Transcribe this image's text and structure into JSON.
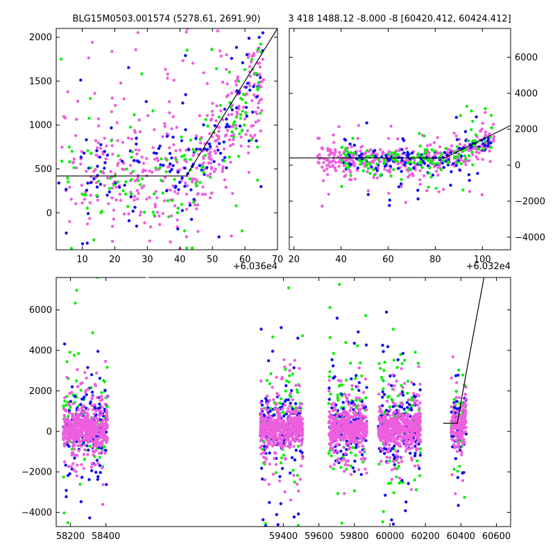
{
  "colors": {
    "magenta": "#ee5ede",
    "blue": "#1010ee",
    "green": "#10ee10",
    "line": "#000000"
  },
  "chart_data": [
    {
      "type": "scatter",
      "title": "BLG15M0503.001574 (5278.61, 2691.90)",
      "offset_label": "+6.036e4",
      "xlim": [
        2,
        70
      ],
      "ylim": [
        -420,
        2100
      ],
      "xticks": [
        10,
        20,
        30,
        40,
        50,
        60,
        70
      ],
      "yticks": [
        0,
        500,
        1000,
        1500,
        2000
      ],
      "model": {
        "x": [
          2,
          42,
          70
        ],
        "y": [
          420,
          420,
          2100
        ]
      },
      "series": [
        {
          "color": "magenta",
          "count": 430,
          "x_range": [
            2,
            66
          ],
          "trend": "rising"
        },
        {
          "color": "blue",
          "count": 150,
          "x_range": [
            2,
            66
          ],
          "trend": "rising"
        },
        {
          "color": "green",
          "count": 150,
          "x_range": [
            2,
            66
          ],
          "trend": "rising"
        }
      ]
    },
    {
      "type": "scatter",
      "title": "3 418 1488.12 -8.000 -8 [60420.412, 60424.412]",
      "offset_label": "+6.032e4",
      "xlim": [
        18,
        112
      ],
      "ylim": [
        -4700,
        7600
      ],
      "xticks": [
        20,
        40,
        60,
        80,
        100
      ],
      "yticks": [
        -4000,
        -2000,
        0,
        2000,
        4000,
        6000
      ],
      "model": {
        "x": [
          18,
          84,
          112
        ],
        "y": [
          400,
          400,
          2200
        ]
      },
      "series": [
        {
          "color": "magenta",
          "count": 380,
          "x_range": [
            30,
            105
          ]
        },
        {
          "color": "blue",
          "count": 140,
          "x_range": [
            40,
            105
          ]
        },
        {
          "color": "green",
          "count": 140,
          "x_range": [
            40,
            105
          ]
        }
      ]
    },
    {
      "type": "scatter",
      "xlim": [
        58120,
        60680
      ],
      "ylim": [
        -4700,
        7600
      ],
      "xticks": [
        58200,
        58400,
        59400,
        59600,
        59800,
        60000,
        60200,
        60400,
        60600
      ],
      "yticks": [
        -4000,
        -2000,
        0,
        2000,
        4000,
        6000
      ],
      "seasons": [
        [
          58160,
          58410
        ],
        [
          59270,
          59510
        ],
        [
          59655,
          59870
        ],
        [
          59935,
          60175
        ],
        [
          60345,
          60430
        ]
      ],
      "model": {
        "x": [
          60300,
          60380,
          60424,
          60530
        ],
        "y": [
          400,
          400,
          2600,
          7600
        ]
      },
      "series": [
        {
          "color": "magenta",
          "count": 2200
        },
        {
          "color": "blue",
          "count": 650
        },
        {
          "color": "green",
          "count": 450
        }
      ]
    }
  ]
}
